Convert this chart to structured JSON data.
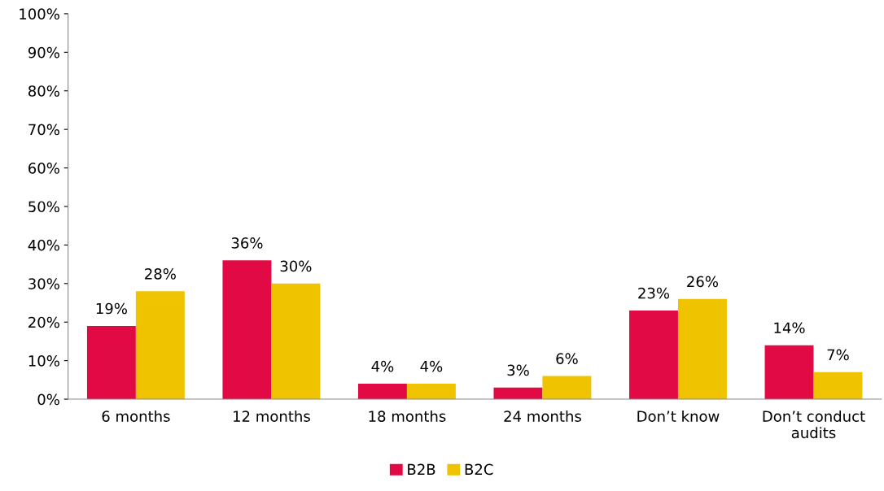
{
  "chart_data": {
    "type": "bar",
    "categories": [
      "6 months",
      "12 months",
      "18 months",
      "24 months",
      "Don’t know",
      "Don’t conduct\naudits"
    ],
    "series": [
      {
        "name": "B2B",
        "color": "#e20a45",
        "values": [
          19,
          36,
          4,
          3,
          23,
          14
        ],
        "value_labels": [
          "19%",
          "36%",
          "4%",
          "3%",
          "23%",
          "14%"
        ]
      },
      {
        "name": "B2C",
        "color": "#efc300",
        "values": [
          28,
          30,
          4,
          6,
          26,
          7
        ],
        "value_labels": [
          "28%",
          "30%",
          "4%",
          "6%",
          "26%",
          "7%"
        ]
      }
    ],
    "ylim": [
      0,
      100
    ],
    "yticks": [
      {
        "value": 0,
        "label": "0%"
      },
      {
        "value": 10,
        "label": "10%"
      },
      {
        "value": 20,
        "label": "20%"
      },
      {
        "value": 30,
        "label": "30%"
      },
      {
        "value": 40,
        "label": "40%"
      },
      {
        "value": 50,
        "label": "50%"
      },
      {
        "value": 60,
        "label": "60%"
      },
      {
        "value": 70,
        "label": "70%"
      },
      {
        "value": 80,
        "label": "80%"
      },
      {
        "value": 90,
        "label": "90%"
      },
      {
        "value": 100,
        "label": "100%"
      }
    ],
    "grid": false,
    "legend": "bottom"
  }
}
